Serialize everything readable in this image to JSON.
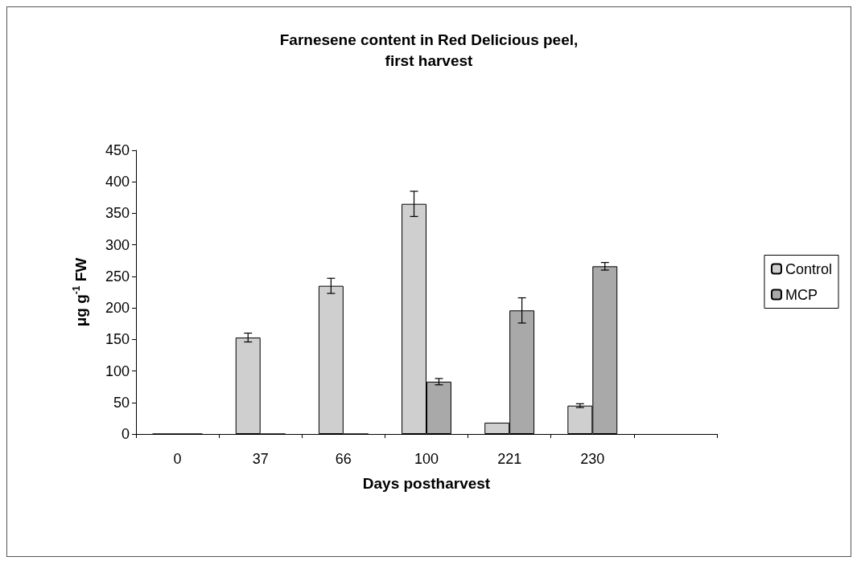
{
  "chart_data": {
    "type": "bar",
    "title": "Farnesene content in Red Delicious peel,\nfirst harvest",
    "xlabel": "Days postharvest",
    "ylabel": "μg g$^{-1}$ FW",
    "categories": [
      "0",
      "37",
      "66",
      "100",
      "221",
      "230",
      null
    ],
    "series": [
      {
        "name": "Control",
        "color": "#cfcfcf",
        "values": [
          0,
          153,
          235,
          365,
          18,
          45,
          null
        ],
        "errors": [
          null,
          7,
          12,
          20,
          null,
          3,
          null
        ]
      },
      {
        "name": "MCP",
        "color": "#a9a9a9",
        "values": [
          0,
          0,
          0,
          83,
          196,
          266,
          null
        ],
        "errors": [
          null,
          null,
          null,
          5,
          20,
          6,
          null
        ]
      }
    ],
    "ylim": [
      0,
      450
    ],
    "yticks": [
      0,
      50,
      100,
      150,
      200,
      250,
      300,
      350,
      400,
      450
    ],
    "grid": false,
    "legend": "right"
  }
}
